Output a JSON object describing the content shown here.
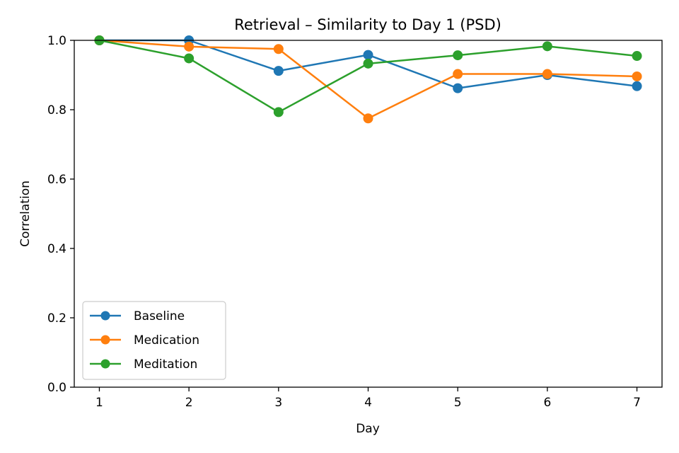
{
  "chart_data": {
    "type": "line",
    "title": "Retrieval – Similarity to Day 1 (PSD)",
    "xlabel": "Day",
    "ylabel": "Correlation",
    "x": [
      1,
      2,
      3,
      4,
      5,
      6,
      7
    ],
    "xticks": [
      "1",
      "2",
      "3",
      "4",
      "5",
      "6",
      "7"
    ],
    "xlim": [
      0.72,
      7.28
    ],
    "ylim": [
      0.0,
      1.0
    ],
    "yticks": [
      "0.0",
      "0.2",
      "0.4",
      "0.6",
      "0.8",
      "1.0"
    ],
    "grid": false,
    "legend_position": "lower-left",
    "series": [
      {
        "name": "Baseline",
        "color": "#1f77b4",
        "values": [
          1.0,
          1.0,
          0.912,
          0.958,
          0.862,
          0.9,
          0.868
        ]
      },
      {
        "name": "Medication",
        "color": "#ff7f0e",
        "values": [
          1.0,
          0.982,
          0.975,
          0.775,
          0.903,
          0.903,
          0.896
        ]
      },
      {
        "name": "Meditation",
        "color": "#2ca02c",
        "values": [
          1.0,
          0.948,
          0.793,
          0.933,
          0.957,
          0.983,
          0.955
        ]
      }
    ]
  }
}
